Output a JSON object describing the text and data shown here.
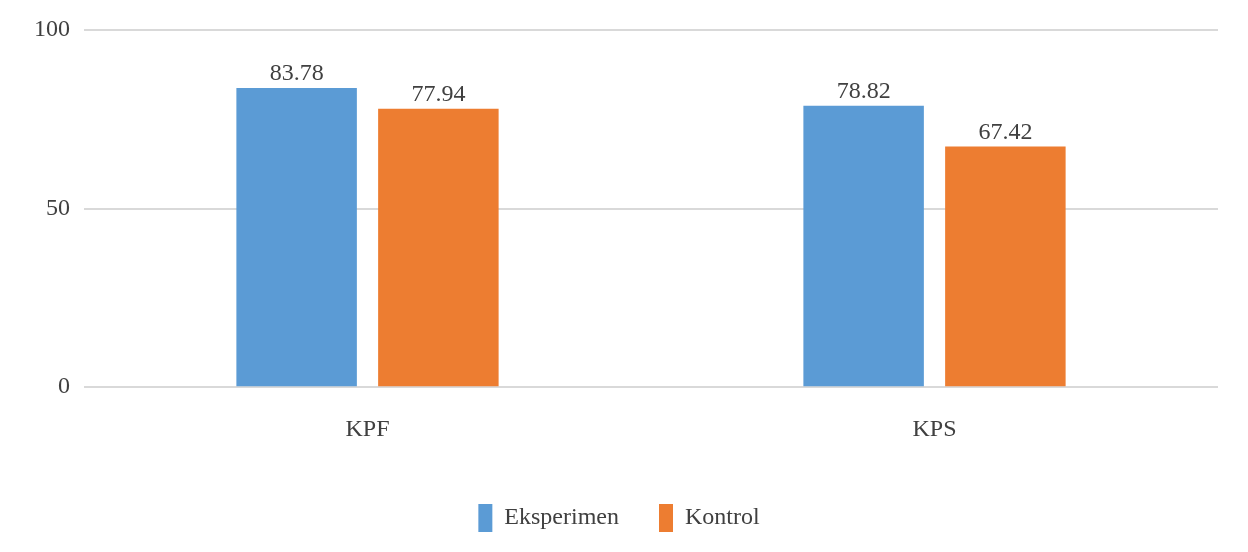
{
  "chart_data": {
    "type": "bar",
    "categories": [
      "KPF",
      "KPS"
    ],
    "series": [
      {
        "name": "Eksperimen",
        "color": "#5b9bd5",
        "values": [
          83.78,
          78.82
        ]
      },
      {
        "name": "Kontrol",
        "color": "#ed7d31",
        "values": [
          77.94,
          67.42
        ]
      }
    ],
    "ylim": [
      0,
      100
    ],
    "yticks": [
      0,
      50,
      100
    ],
    "grid": "y",
    "legend": "bottom",
    "data_labels": true
  }
}
